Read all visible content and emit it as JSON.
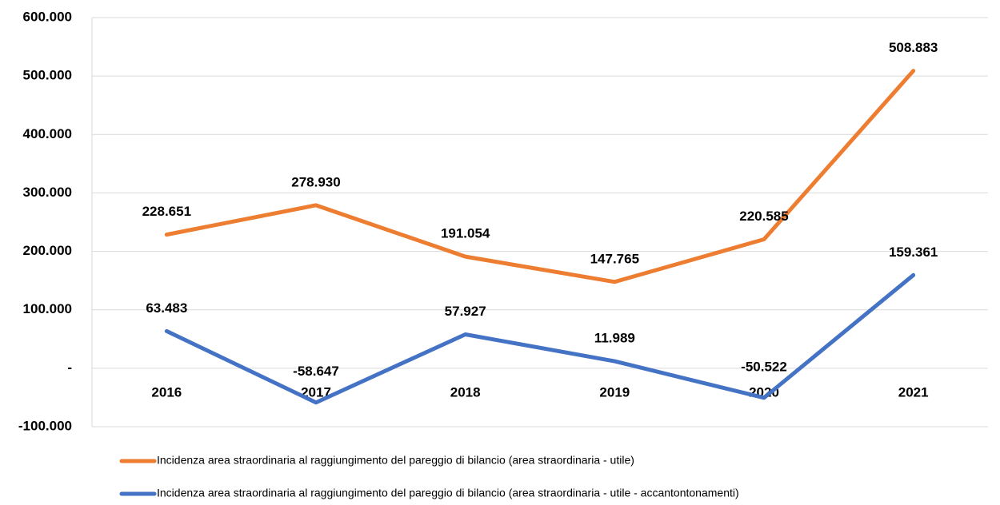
{
  "chart_data": {
    "type": "line",
    "categories": [
      "2016",
      "2017",
      "2018",
      "2019",
      "2020",
      "2021"
    ],
    "series": [
      {
        "name": "Incidenza area straordinaria al raggiungimento del pareggio di bilancio (area straordinaria - utile)",
        "color": "#ed7d31",
        "values": [
          228651,
          278930,
          191054,
          147765,
          220585,
          508883
        ],
        "value_labels": [
          "228.651",
          "278.930",
          "191.054",
          "147.765",
          "220.585",
          "508.883"
        ]
      },
      {
        "name": "Incidenza area straordinaria al raggiungimento del pareggio di bilancio (area straordinaria - utile - accantontonamenti)",
        "color": "#4472c4",
        "values": [
          63483,
          -58647,
          57927,
          11989,
          -50522,
          159361
        ],
        "value_labels": [
          "63.483",
          "-58.647",
          "57.927",
          "11.989",
          "-50.522",
          "159.361"
        ]
      }
    ],
    "ylim": [
      -100000,
      600000
    ],
    "yticks": [
      {
        "value": -100000,
        "label": "-100.000"
      },
      {
        "value": 0,
        "label": "-"
      },
      {
        "value": 100000,
        "label": "100.000"
      },
      {
        "value": 200000,
        "label": "200.000"
      },
      {
        "value": 300000,
        "label": "300.000"
      },
      {
        "value": 400000,
        "label": "400.000"
      },
      {
        "value": 500000,
        "label": "500.000"
      },
      {
        "value": 600000,
        "label": "600.000"
      }
    ],
    "grid": true
  }
}
